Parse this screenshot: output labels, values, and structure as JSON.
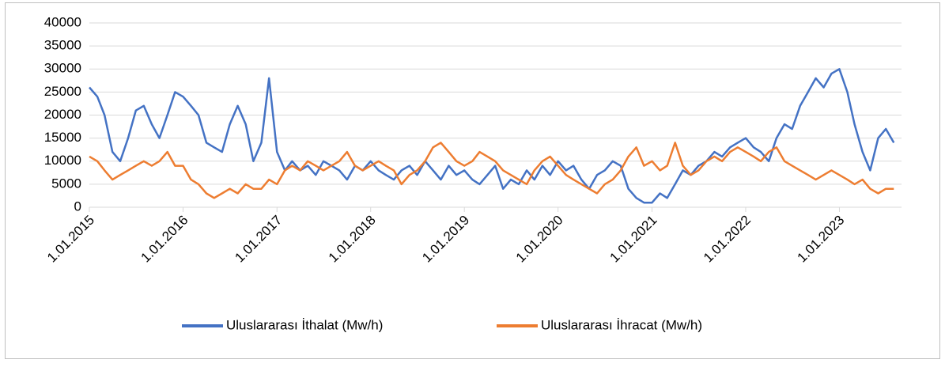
{
  "chart_data": {
    "type": "line",
    "x": [
      "1.01.2015",
      "1.02.2015",
      "1.03.2015",
      "1.04.2015",
      "1.05.2015",
      "1.06.2015",
      "1.07.2015",
      "1.08.2015",
      "1.09.2015",
      "1.10.2015",
      "1.11.2015",
      "1.12.2015",
      "1.01.2016",
      "1.02.2016",
      "1.03.2016",
      "1.04.2016",
      "1.05.2016",
      "1.06.2016",
      "1.07.2016",
      "1.08.2016",
      "1.09.2016",
      "1.10.2016",
      "1.11.2016",
      "1.12.2016",
      "1.01.2017",
      "1.02.2017",
      "1.03.2017",
      "1.04.2017",
      "1.05.2017",
      "1.06.2017",
      "1.07.2017",
      "1.08.2017",
      "1.09.2017",
      "1.10.2017",
      "1.11.2017",
      "1.12.2017",
      "1.01.2018",
      "1.02.2018",
      "1.03.2018",
      "1.04.2018",
      "1.05.2018",
      "1.06.2018",
      "1.07.2018",
      "1.08.2018",
      "1.09.2018",
      "1.10.2018",
      "1.11.2018",
      "1.12.2018",
      "1.01.2019",
      "1.02.2019",
      "1.03.2019",
      "1.04.2019",
      "1.05.2019",
      "1.06.2019",
      "1.07.2019",
      "1.08.2019",
      "1.09.2019",
      "1.10.2019",
      "1.11.2019",
      "1.12.2019",
      "1.01.2020",
      "1.02.2020",
      "1.03.2020",
      "1.04.2020",
      "1.05.2020",
      "1.06.2020",
      "1.07.2020",
      "1.08.2020",
      "1.09.2020",
      "1.10.2020",
      "1.11.2020",
      "1.12.2020",
      "1.01.2021",
      "1.02.2021",
      "1.03.2021",
      "1.04.2021",
      "1.05.2021",
      "1.06.2021",
      "1.07.2021",
      "1.08.2021",
      "1.09.2021",
      "1.10.2021",
      "1.11.2021",
      "1.12.2021",
      "1.01.2022",
      "1.02.2022",
      "1.03.2022",
      "1.04.2022",
      "1.05.2022",
      "1.06.2022",
      "1.07.2022",
      "1.08.2022",
      "1.09.2022",
      "1.10.2022",
      "1.11.2022",
      "1.12.2022",
      "1.01.2023",
      "1.02.2023",
      "1.03.2023",
      "1.04.2023",
      "1.05.2023",
      "1.06.2023",
      "1.07.2023",
      "1.08.2023"
    ],
    "series": [
      {
        "name": "Uluslararası İthalat (Mw/h)",
        "color": "#4472c4",
        "values": [
          26000,
          24000,
          20000,
          12000,
          10000,
          15000,
          21000,
          22000,
          18000,
          15000,
          20000,
          25000,
          24000,
          22000,
          20000,
          14000,
          13000,
          12000,
          18000,
          22000,
          18000,
          10000,
          14000,
          28000,
          12000,
          8000,
          10000,
          8000,
          9000,
          7000,
          10000,
          9000,
          8000,
          6000,
          9000,
          8000,
          10000,
          8000,
          7000,
          6000,
          8000,
          9000,
          7000,
          10000,
          8000,
          6000,
          9000,
          7000,
          8000,
          6000,
          5000,
          7000,
          9000,
          4000,
          6000,
          5000,
          8000,
          6000,
          9000,
          7000,
          10000,
          8000,
          9000,
          6000,
          4000,
          7000,
          8000,
          10000,
          9000,
          4000,
          2000,
          1000,
          1000,
          3000,
          2000,
          5000,
          8000,
          7000,
          9000,
          10000,
          12000,
          11000,
          13000,
          14000,
          15000,
          13000,
          12000,
          10000,
          15000,
          18000,
          17000,
          22000,
          25000,
          28000,
          26000,
          29000,
          30000,
          25000,
          18000,
          12000,
          8000,
          15000,
          17000,
          14000
        ]
      },
      {
        "name": "Uluslararası İhracat (Mw/h)",
        "color": "#ed7d31",
        "values": [
          11000,
          10000,
          8000,
          6000,
          7000,
          8000,
          9000,
          10000,
          9000,
          10000,
          12000,
          9000,
          9000,
          6000,
          5000,
          3000,
          2000,
          3000,
          4000,
          3000,
          5000,
          4000,
          4000,
          6000,
          5000,
          8000,
          9000,
          8000,
          10000,
          9000,
          8000,
          9000,
          10000,
          12000,
          9000,
          8000,
          9000,
          10000,
          9000,
          8000,
          5000,
          7000,
          8000,
          10000,
          13000,
          14000,
          12000,
          10000,
          9000,
          10000,
          12000,
          11000,
          10000,
          8000,
          7000,
          6000,
          5000,
          8000,
          10000,
          11000,
          9000,
          7000,
          6000,
          5000,
          4000,
          3000,
          5000,
          6000,
          8000,
          11000,
          13000,
          9000,
          10000,
          8000,
          9000,
          14000,
          9000,
          7000,
          8000,
          10000,
          11000,
          10000,
          12000,
          13000,
          12000,
          11000,
          10000,
          12000,
          13000,
          10000,
          9000,
          8000,
          7000,
          6000,
          7000,
          8000,
          7000,
          6000,
          5000,
          6000,
          4000,
          3000,
          4000,
          4000
        ]
      }
    ],
    "xlim": [
      "1.01.2015",
      "31.08.2023"
    ],
    "xticks": [
      "1.01.2015",
      "1.01.2016",
      "1.01.2017",
      "1.01.2018",
      "1.01.2019",
      "1.01.2020",
      "1.01.2021",
      "1.01.2022",
      "1.01.2023"
    ],
    "ylim": [
      0,
      40000
    ],
    "yticks": [
      0,
      5000,
      10000,
      15000,
      20000,
      25000,
      30000,
      35000,
      40000
    ],
    "grid": true,
    "legend": "bottom"
  }
}
